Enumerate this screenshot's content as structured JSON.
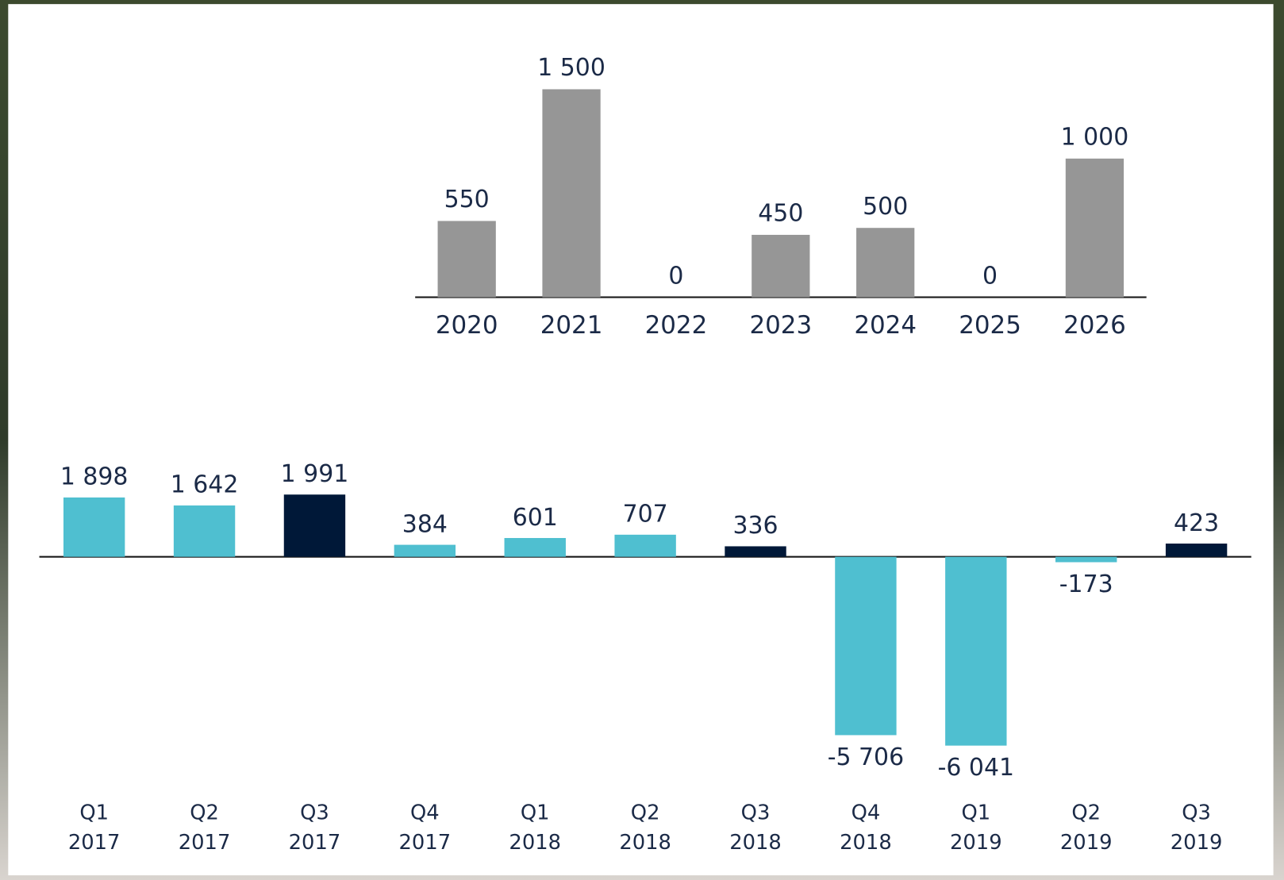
{
  "chart_data": [
    {
      "type": "bar",
      "categories": [
        "2020",
        "2021",
        "2022",
        "2023",
        "2024",
        "2025",
        "2026"
      ],
      "values": [
        550,
        1500,
        0,
        450,
        500,
        0,
        1000
      ],
      "value_labels": [
        "550",
        "1 500",
        "0",
        "450",
        "500",
        "0",
        "1 000"
      ],
      "color": "#969696",
      "ylim": [
        0,
        1500
      ]
    },
    {
      "type": "bar",
      "categories": [
        [
          "Q1",
          "2017"
        ],
        [
          "Q2",
          "2017"
        ],
        [
          "Q3",
          "2017"
        ],
        [
          "Q4",
          "2017"
        ],
        [
          "Q1",
          "2018"
        ],
        [
          "Q2",
          "2018"
        ],
        [
          "Q3",
          "2018"
        ],
        [
          "Q4",
          "2018"
        ],
        [
          "Q1",
          "2019"
        ],
        [
          "Q2",
          "2019"
        ],
        [
          "Q3",
          "2019"
        ]
      ],
      "values": [
        1898,
        1642,
        1991,
        384,
        601,
        707,
        336,
        -5706,
        -6041,
        -173,
        423
      ],
      "value_labels": [
        "1 898",
        "1 642",
        "1 991",
        "384",
        "601",
        "707",
        "336",
        "-5 706",
        "-6 041",
        "-173",
        "423"
      ],
      "colors": [
        "#4fbfd0",
        "#4fbfd0",
        "#001838",
        "#4fbfd0",
        "#4fbfd0",
        "#4fbfd0",
        "#001838",
        "#4fbfd0",
        "#4fbfd0",
        "#4fbfd0",
        "#001838"
      ],
      "ylim": [
        -6041,
        1991
      ]
    }
  ]
}
